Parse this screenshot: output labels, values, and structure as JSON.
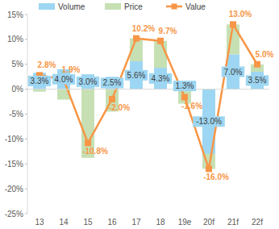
{
  "chart_data": {
    "type": "bar",
    "stacked": true,
    "legend": "top",
    "grid": false,
    "categories": [
      "13",
      "14",
      "15",
      "16",
      "17",
      "18",
      "19e",
      "20f",
      "21f",
      "22f"
    ],
    "series": [
      {
        "name": "Volume",
        "type": "bar",
        "color": "#9dd6f2",
        "data_labels": true,
        "values": [
          3.3,
          4.0,
          3.0,
          2.5,
          5.6,
          4.3,
          1.3,
          -13.0,
          7.0,
          3.5
        ],
        "value_labels": [
          "3.3%",
          "4.0%",
          "3.0%",
          "2.5%",
          "5.6%",
          "4.3%",
          "1.3%",
          "-13.0%",
          "7.0%",
          "3.5%"
        ]
      },
      {
        "name": "Price",
        "type": "bar",
        "color": "#c6e0b4",
        "data_labels": false,
        "values": [
          -0.5,
          -2.1,
          -13.8,
          -4.5,
          4.6,
          5.4,
          -2.9,
          -3.0,
          6.0,
          1.5
        ]
      },
      {
        "name": "Value",
        "type": "line",
        "color": "#f79646",
        "marker": "square",
        "line_style": "solid",
        "data_labels": true,
        "values": [
          2.8,
          1.9,
          -10.8,
          -2.0,
          10.2,
          9.7,
          -1.6,
          -16.0,
          13.0,
          5.0
        ],
        "value_labels": [
          "2.8%",
          "1.9%",
          "-10.8%",
          "-2.0%",
          "10.2%",
          "9.7%",
          "-1.6%",
          "-16.0%",
          "13.0%",
          "5.0%"
        ]
      }
    ],
    "ylim": [
      -25,
      15
    ],
    "yticks": [
      {
        "value": -25,
        "label": "-25%"
      },
      {
        "value": -20,
        "label": "-20%"
      },
      {
        "value": -15,
        "label": "-15%"
      },
      {
        "value": -10,
        "label": "-10%"
      },
      {
        "value": -5,
        "label": "-5%"
      },
      {
        "value": 0,
        "label": "0%"
      },
      {
        "value": 5,
        "label": "5%"
      },
      {
        "value": 10,
        "label": "10%"
      },
      {
        "value": 15,
        "label": "15%"
      }
    ]
  }
}
